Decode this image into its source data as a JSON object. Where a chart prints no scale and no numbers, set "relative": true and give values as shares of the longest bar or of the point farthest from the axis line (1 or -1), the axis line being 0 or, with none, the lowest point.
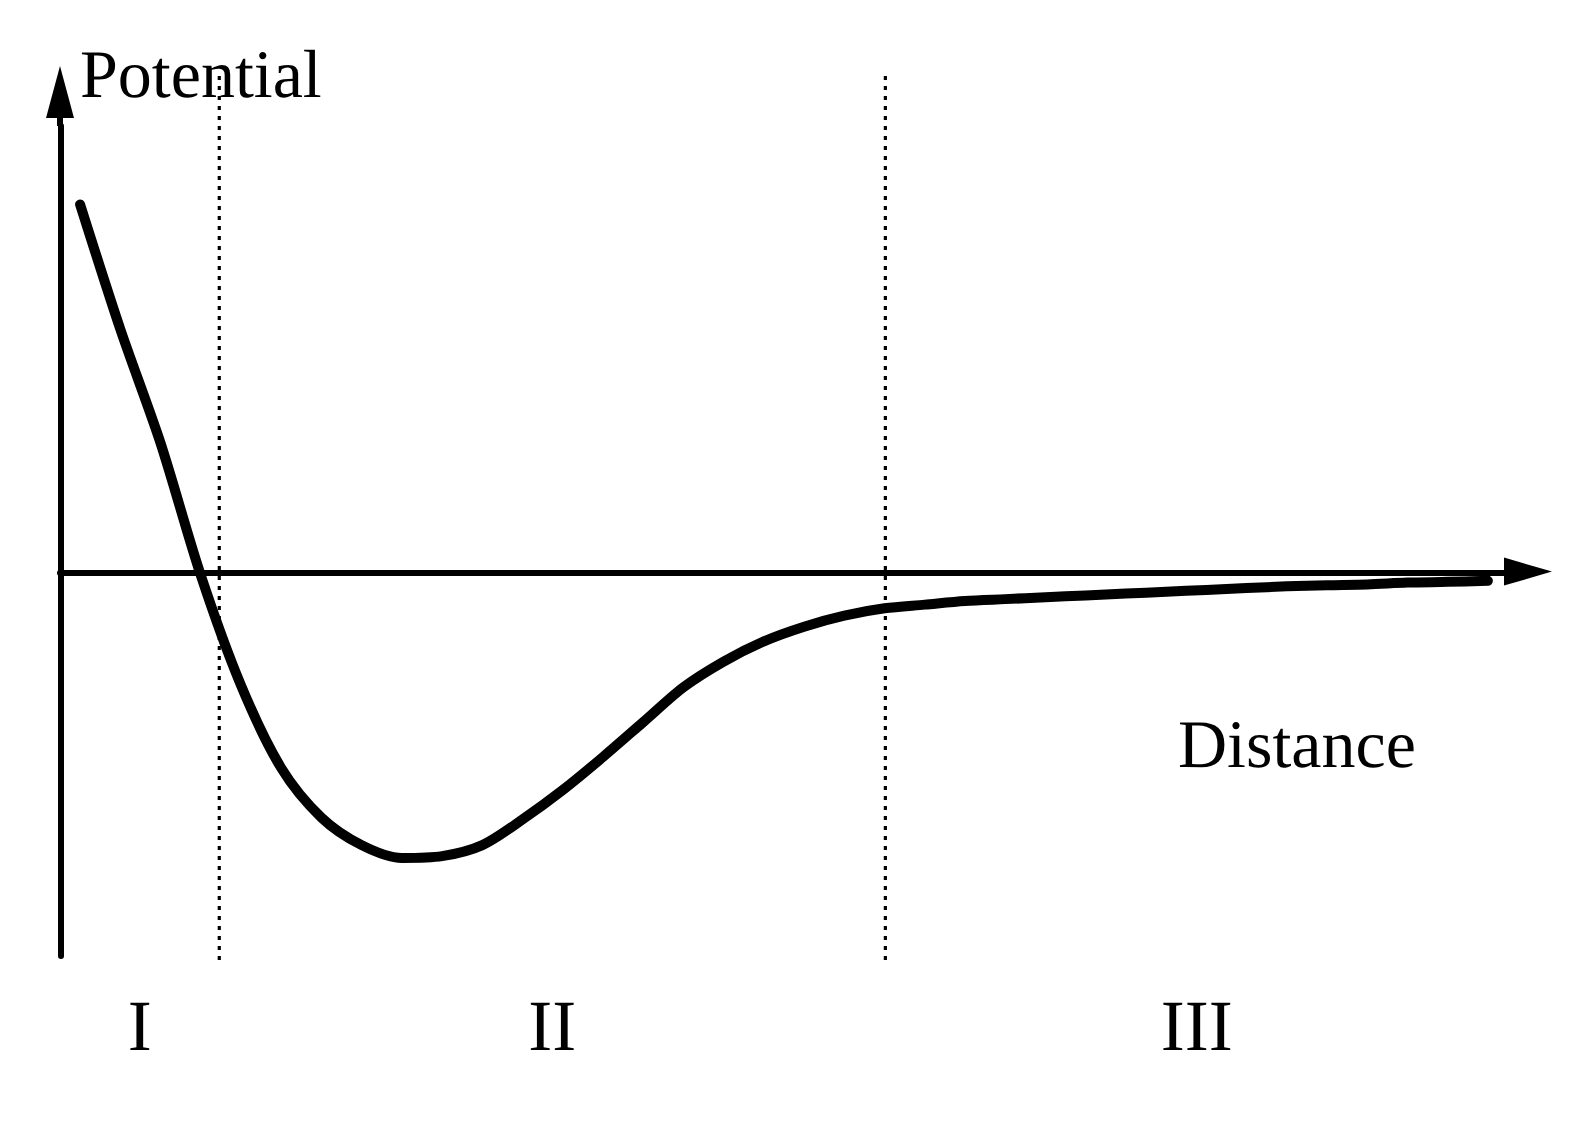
{
  "chart_data": {
    "type": "line",
    "relative": true,
    "xlabel": "Distance",
    "ylabel": "Potential",
    "categories": [
      null,
      null,
      null,
      null,
      null,
      null,
      null,
      null,
      null,
      null,
      null,
      null,
      null,
      null,
      null,
      null,
      null,
      null,
      null,
      null,
      null,
      null,
      null,
      null,
      null,
      null,
      null,
      null,
      null,
      null,
      null,
      null,
      null,
      null,
      null,
      null
    ],
    "series": [
      {
        "color": "#000000",
        "values": [
          1.0,
          0.66,
          0.35,
          -0.01,
          -0.31,
          -0.535,
          -0.67,
          -0.745,
          -0.78,
          -0.775,
          -0.745,
          -0.675,
          -0.595,
          -0.505,
          -0.41,
          -0.315,
          -0.245,
          -0.19,
          -0.15,
          -0.12,
          -0.1,
          -0.09,
          -0.08,
          -0.075,
          -0.07,
          -0.065,
          -0.06,
          -0.055,
          -0.05,
          -0.045,
          -0.04,
          -0.037,
          -0.035,
          -0.03,
          -0.028,
          -0.025
        ]
      }
    ],
    "annotations": [
      "I",
      "II",
      "III"
    ]
  }
}
